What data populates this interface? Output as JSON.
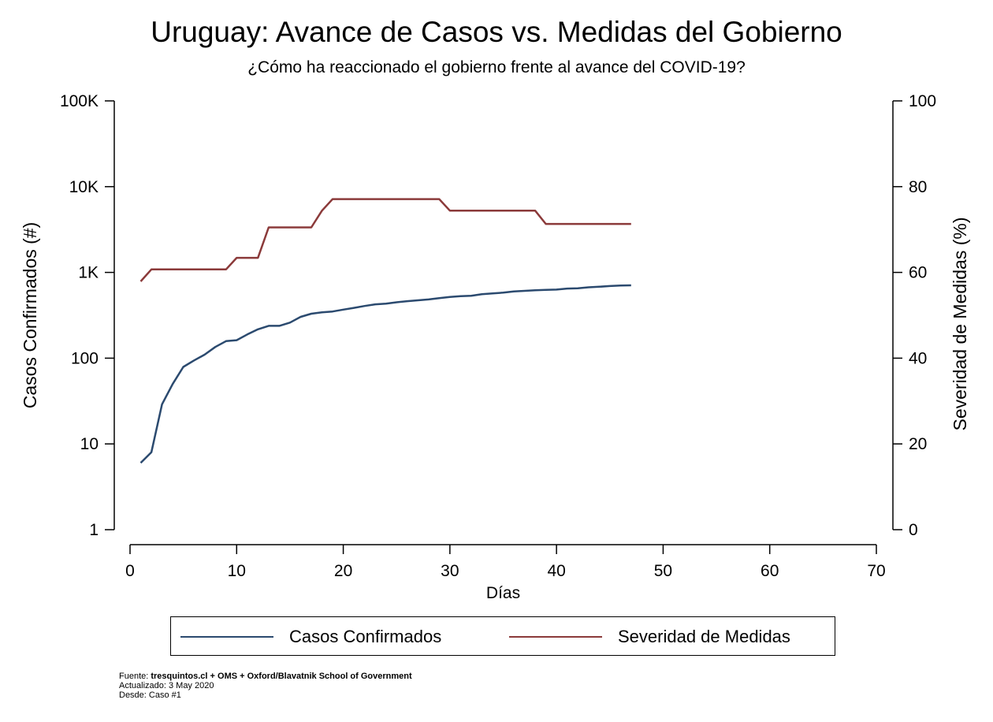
{
  "chart_data": {
    "type": "line",
    "title": "Uruguay: Avance de Casos vs. Medidas del Gobierno",
    "subtitle": "¿Cómo ha reaccionado el gobierno frente al avance del COVID-19?",
    "xlabel": "Días",
    "ylabel_left": "Casos Confirmados (#)",
    "ylabel_right": "Severidad de Medidas (%)",
    "xlim": [
      0,
      70
    ],
    "xticks": [
      0,
      10,
      20,
      30,
      40,
      50,
      60,
      70
    ],
    "y_left_scale": "log",
    "y_left_lim": [
      1,
      100000
    ],
    "y_left_ticks": [
      {
        "value": 1,
        "label": "1"
      },
      {
        "value": 10,
        "label": "10"
      },
      {
        "value": 100,
        "label": "100"
      },
      {
        "value": 1000,
        "label": "1K"
      },
      {
        "value": 10000,
        "label": "10K"
      },
      {
        "value": 100000,
        "label": "100K"
      }
    ],
    "y_right_lim": [
      0,
      100
    ],
    "y_right_ticks": [
      0,
      20,
      40,
      60,
      80,
      100
    ],
    "grid": false,
    "legend_position": "bottom",
    "series": [
      {
        "name": "Casos Confirmados",
        "axis": "left",
        "color": "#2b4a6f",
        "x": [
          1,
          2,
          3,
          4,
          5,
          6,
          7,
          8,
          9,
          10,
          11,
          12,
          13,
          14,
          15,
          16,
          17,
          18,
          19,
          20,
          21,
          22,
          23,
          24,
          25,
          26,
          27,
          28,
          29,
          30,
          31,
          32,
          33,
          34,
          35,
          36,
          37,
          38,
          39,
          40,
          41,
          42,
          43,
          44,
          45,
          46,
          47
        ],
        "values": [
          6,
          8,
          29,
          50,
          79,
          94,
          110,
          135,
          158,
          162,
          189,
          217,
          238,
          238,
          260,
          303,
          330,
          342,
          350,
          368,
          386,
          406,
          424,
          432,
          448,
          462,
          473,
          484,
          502,
          517,
          528,
          535,
          557,
          570,
          580,
          601,
          610,
          620,
          625,
          630,
          648,
          652,
          671,
          680,
          694,
          702,
          707
        ]
      },
      {
        "name": "Severidad de Medidas",
        "axis": "right",
        "color": "#8b3a3a",
        "x": [
          1,
          2,
          3,
          4,
          5,
          6,
          7,
          8,
          9,
          10,
          11,
          12,
          13,
          14,
          15,
          16,
          17,
          18,
          19,
          20,
          21,
          22,
          23,
          24,
          25,
          26,
          27,
          28,
          29,
          30,
          31,
          32,
          33,
          34,
          35,
          36,
          37,
          38,
          39,
          40,
          41,
          42,
          43,
          44,
          45,
          46,
          47
        ],
        "values": [
          57.9,
          60.7,
          60.7,
          60.7,
          60.7,
          60.7,
          60.7,
          60.7,
          60.7,
          63.4,
          63.4,
          63.4,
          70.5,
          70.5,
          70.5,
          70.5,
          70.5,
          74.4,
          77.1,
          77.1,
          77.1,
          77.1,
          77.1,
          77.1,
          77.1,
          77.1,
          77.1,
          77.1,
          77.1,
          74.4,
          74.4,
          74.4,
          74.4,
          74.4,
          74.4,
          74.4,
          74.4,
          74.4,
          71.3,
          71.3,
          71.3,
          71.3,
          71.3,
          71.3,
          71.3,
          71.3,
          71.3
        ]
      }
    ]
  },
  "footnote": {
    "source_label": "Fuente: ",
    "source_1": "tresquintos.cl",
    "plus_1": " + OMS + ",
    "source_2": "Oxford/Blavatnik School of Government",
    "updated": "Actualizado: 3 May 2020",
    "since": "Desde: Caso #1"
  }
}
